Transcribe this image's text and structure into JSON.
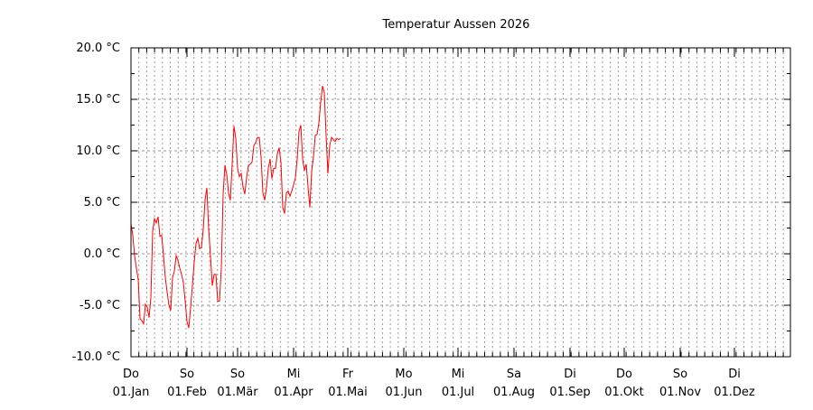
{
  "chart_data": {
    "type": "line",
    "title": "Temperatur Aussen 2026",
    "xlabel": "",
    "ylabel": "",
    "ylim": [
      -10,
      20
    ],
    "xlim_days": [
      0,
      365
    ],
    "grid": true,
    "y_ticks": [
      {
        "value": 20,
        "label": "20.0 °C"
      },
      {
        "value": 15,
        "label": "15.0 °C"
      },
      {
        "value": 10,
        "label": "10.0 °C"
      },
      {
        "value": 5,
        "label": "5.0 °C"
      },
      {
        "value": 0,
        "label": "0.0 °C"
      },
      {
        "value": -5,
        "label": "-5.0 °C"
      },
      {
        "value": -10,
        "label": "-10.0 °C"
      }
    ],
    "x_ticks": [
      {
        "day": 0,
        "weekday": "Do",
        "date": "01.Jan"
      },
      {
        "day": 31,
        "weekday": "So",
        "date": "01.Feb"
      },
      {
        "day": 59,
        "weekday": "So",
        "date": "01.Mär"
      },
      {
        "day": 90,
        "weekday": "Mi",
        "date": "01.Apr"
      },
      {
        "day": 120,
        "weekday": "Fr",
        "date": "01.Mai"
      },
      {
        "day": 151,
        "weekday": "Mo",
        "date": "01.Jun"
      },
      {
        "day": 181,
        "weekday": "Mi",
        "date": "01.Jul"
      },
      {
        "day": 212,
        "weekday": "Sa",
        "date": "01.Aug"
      },
      {
        "day": 243,
        "weekday": "Di",
        "date": "01.Sep"
      },
      {
        "day": 273,
        "weekday": "Do",
        "date": "01.Okt"
      },
      {
        "day": 304,
        "weekday": "So",
        "date": "01.Nov"
      },
      {
        "day": 334,
        "weekday": "Di",
        "date": "01.Dez"
      }
    ],
    "series": [
      {
        "name": "Temperatur Aussen",
        "color": "#ff0000",
        "start_day": 0,
        "values": [
          2.9,
          1.8,
          -0.2,
          -1.4,
          -2.5,
          -6.3,
          -6.5,
          -6.8,
          -4.9,
          -5.2,
          -6.2,
          -4.3,
          2.2,
          3.4,
          3.0,
          3.6,
          1.7,
          1.8,
          -0.2,
          -2.3,
          -3.7,
          -5.0,
          -5.5,
          -2.3,
          -1.7,
          -0.2,
          -0.6,
          -1.4,
          -2.0,
          -2.8,
          -4.6,
          -6.6,
          -7.2,
          -5.2,
          -3.1,
          -0.8,
          1.0,
          1.5,
          0.5,
          0.6,
          2.4,
          5.2,
          6.4,
          2.4,
          -0.2,
          -3.1,
          -2.0,
          -2.0,
          -4.6,
          -4.6,
          -1.4,
          5.8,
          8.6,
          7.7,
          5.9,
          5.2,
          8.7,
          12.4,
          11.2,
          8.3,
          7.5,
          7.8,
          6.5,
          5.8,
          7.4,
          8.6,
          8.7,
          8.9,
          10.5,
          10.8,
          11.3,
          11.3,
          9.4,
          5.9,
          5.2,
          6.4,
          8.3,
          9.2,
          7.3,
          8.3,
          8.3,
          9.7,
          10.3,
          8.9,
          4.5,
          3.9,
          5.9,
          6.1,
          5.6,
          6.1,
          6.7,
          7.4,
          9.2,
          11.9,
          12.5,
          9.2,
          8.1,
          8.7,
          6.5,
          4.5,
          8.0,
          9.4,
          11.5,
          11.6,
          12.7,
          14.7,
          16.3,
          15.7,
          11.5,
          7.8,
          10.5,
          11.3,
          11.1,
          10.9,
          11.2,
          11.1,
          11.2
        ]
      }
    ]
  }
}
